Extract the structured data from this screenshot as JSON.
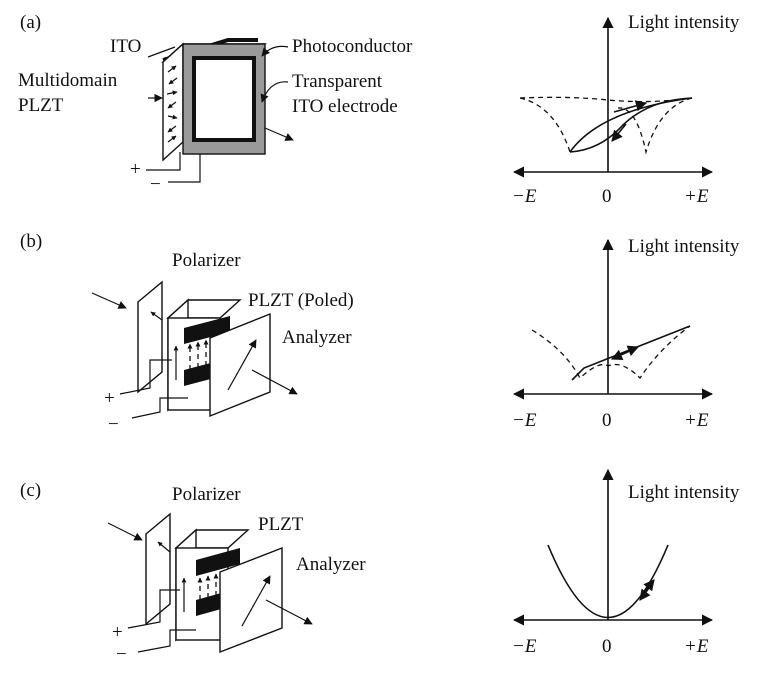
{
  "panels": {
    "a": {
      "label": "(a)",
      "ito": "ITO",
      "photoconductor": "Photoconductor",
      "transparent": "Transparent",
      "ito_electrode": "ITO electrode",
      "multidomain": "Multidomain",
      "plzt": "PLZT",
      "plus": "+",
      "minus": "−"
    },
    "b": {
      "label": "(b)",
      "polarizer": "Polarizer",
      "plzt_poled": "PLZT (Poled)",
      "analyzer": "Analyzer",
      "plus": "+",
      "minus": "−"
    },
    "c": {
      "label": "(c)",
      "polarizer": "Polarizer",
      "plzt": "PLZT",
      "analyzer": "Analyzer",
      "plus": "+",
      "minus": "−"
    }
  },
  "graphs": {
    "y_label": "Light intensity",
    "x_neg": "−E",
    "x_zero": "0",
    "x_pos": "+E"
  },
  "colors": {
    "ink": "#111111",
    "electrode_gray": "#9a9a9a"
  }
}
